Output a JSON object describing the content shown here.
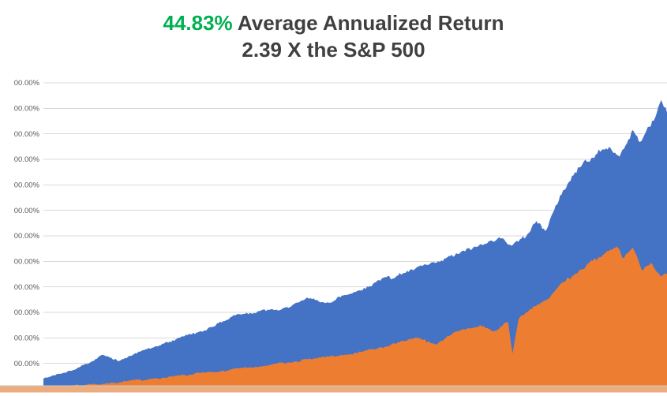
{
  "title": {
    "highlight": "44.83%",
    "rest": " Average Annualized Return",
    "line2": "2.39 X the S&P 500",
    "highlight_color": "#00B050",
    "text_color": "#404040"
  },
  "chart_data": {
    "type": "area",
    "title": "44.83% Average Annualized Return",
    "subtitle": "2.39 X the S&P 500",
    "legend": "none",
    "grid": true,
    "y_axis": {
      "min": 0,
      "max": 1200,
      "step": 100,
      "unit": "%",
      "tick_labels": [
        "00.00%",
        "00.00%",
        "00.00%",
        "00.00%",
        "00.00%",
        "00.00%",
        "00.00%",
        "00.00%",
        "00.00%",
        "00.00%",
        "00.00%",
        "00.00%"
      ],
      "tick_label_color": "#595959",
      "gridline_color": "#D9D9D9"
    },
    "x_axis": {
      "labels": []
    },
    "bottom_strip_color": "#EBAD80",
    "axis_line_color": "#C9C7C5",
    "series": [
      {
        "name": "series-blue",
        "color": "#4472C4",
        "noise_seed": 42,
        "points": [
          [
            0,
            40
          ],
          [
            0.03,
            62
          ],
          [
            0.057,
            86
          ],
          [
            0.08,
            110
          ],
          [
            0.095,
            138
          ],
          [
            0.12,
            107
          ],
          [
            0.14,
            130
          ],
          [
            0.158,
            147
          ],
          [
            0.185,
            170
          ],
          [
            0.209,
            193
          ],
          [
            0.23,
            210
          ],
          [
            0.259,
            229
          ],
          [
            0.285,
            265
          ],
          [
            0.31,
            290
          ],
          [
            0.348,
            306
          ],
          [
            0.386,
            315
          ],
          [
            0.424,
            352
          ],
          [
            0.45,
            340
          ],
          [
            0.462,
            346
          ],
          [
            0.5,
            382
          ],
          [
            0.538,
            422
          ],
          [
            0.576,
            453
          ],
          [
            0.614,
            483
          ],
          [
            0.652,
            514
          ],
          [
            0.69,
            553
          ],
          [
            0.728,
            590
          ],
          [
            0.75,
            570
          ],
          [
            0.766,
            585
          ],
          [
            0.791,
            657
          ],
          [
            0.805,
            620
          ],
          [
            0.829,
            758
          ],
          [
            0.854,
            850
          ],
          [
            0.88,
            911
          ],
          [
            0.905,
            941
          ],
          [
            0.924,
            920
          ],
          [
            0.943,
            1012
          ],
          [
            0.958,
            963
          ],
          [
            0.975,
            1055
          ],
          [
            0.991,
            1116
          ],
          [
            1,
            1085
          ]
        ]
      },
      {
        "name": "series-orange",
        "color": "#ED7D31",
        "noise_seed": 7,
        "points": [
          [
            0,
            8
          ],
          [
            0.05,
            14
          ],
          [
            0.1,
            21
          ],
          [
            0.15,
            33
          ],
          [
            0.2,
            46
          ],
          [
            0.25,
            60
          ],
          [
            0.3,
            76
          ],
          [
            0.35,
            89
          ],
          [
            0.4,
            107
          ],
          [
            0.45,
            125
          ],
          [
            0.5,
            138
          ],
          [
            0.55,
            168
          ],
          [
            0.6,
            199
          ],
          [
            0.63,
            177
          ],
          [
            0.66,
            223
          ],
          [
            0.7,
            248
          ],
          [
            0.725,
            223
          ],
          [
            0.745,
            270
          ],
          [
            0.752,
            135
          ],
          [
            0.762,
            280
          ],
          [
            0.78,
            315
          ],
          [
            0.81,
            352
          ],
          [
            0.83,
            407
          ],
          [
            0.86,
            468
          ],
          [
            0.88,
            499
          ],
          [
            0.9,
            535
          ],
          [
            0.92,
            560
          ],
          [
            0.93,
            514
          ],
          [
            0.945,
            554
          ],
          [
            0.96,
            468
          ],
          [
            0.975,
            499
          ],
          [
            0.99,
            431
          ],
          [
            1,
            450
          ]
        ]
      }
    ]
  }
}
